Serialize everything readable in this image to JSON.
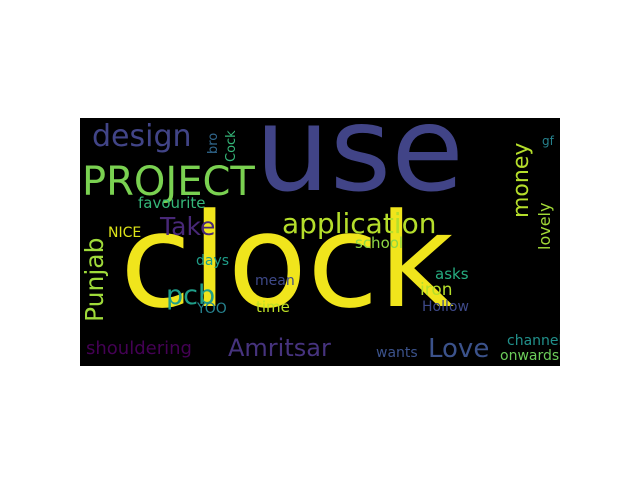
{
  "wordcloud": {
    "words": [
      {
        "text": "use",
        "color": "#414487"
      },
      {
        "text": "clock",
        "color": "#f0e51c"
      },
      {
        "text": "PROJECT",
        "color": "#7ad151"
      },
      {
        "text": "design",
        "color": "#414487"
      },
      {
        "text": "application",
        "color": "#b5de2b"
      },
      {
        "text": "Take",
        "color": "#482878"
      },
      {
        "text": "Punjab",
        "color": "#9fda3a"
      },
      {
        "text": "pcb",
        "color": "#1f9e89"
      },
      {
        "text": "money",
        "color": "#b5de2b"
      },
      {
        "text": "Amritsar",
        "color": "#46337e"
      },
      {
        "text": "Love",
        "color": "#3b528b"
      },
      {
        "text": "shouldering",
        "color": "#440154"
      },
      {
        "text": "lovely",
        "color": "#a2da37"
      },
      {
        "text": "favourite",
        "color": "#35b779"
      },
      {
        "text": "bro",
        "color": "#31688e"
      },
      {
        "text": "Cock",
        "color": "#35b779"
      },
      {
        "text": "NICE",
        "color": "#dde318"
      },
      {
        "text": "school",
        "color": "#8fd744"
      },
      {
        "text": "days",
        "color": "#1f9e89"
      },
      {
        "text": "mean",
        "color": "#3e4989"
      },
      {
        "text": "iron",
        "color": "#b5de2b"
      },
      {
        "text": "asks",
        "color": "#26ad81"
      },
      {
        "text": "time",
        "color": "#bddf26"
      },
      {
        "text": "YOO",
        "color": "#26828e"
      },
      {
        "text": "Hollow",
        "color": "#3e4989"
      },
      {
        "text": "channel",
        "color": "#21918c"
      },
      {
        "text": "onwards",
        "color": "#6ccd5a"
      },
      {
        "text": "wants",
        "color": "#3b528b"
      },
      {
        "text": "gf",
        "color": "#26828e"
      }
    ]
  }
}
